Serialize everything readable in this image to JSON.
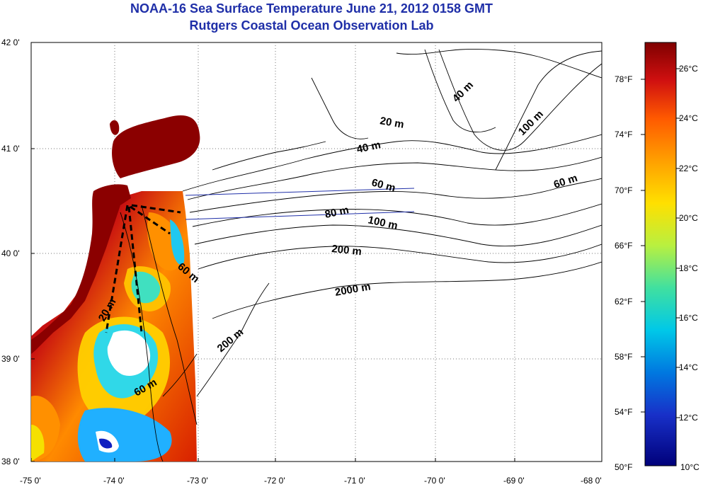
{
  "title": {
    "line1": "NOAA-16 Sea Surface Temperature June 21, 2012 0158 GMT",
    "line2": "Rutgers Coastal Ocean Observation Lab"
  },
  "axes": {
    "x_ticks": [
      "-75 0'",
      "-74 0'",
      "-73 0'",
      "-72 0'",
      "-71 0'",
      "-70 0'",
      "-69 0'",
      "-68 0'"
    ],
    "y_ticks": [
      "42 0'",
      "41 0'",
      "40 0'",
      "39 0'",
      "38 0'"
    ]
  },
  "contour_labels": [
    {
      "text": "40 m",
      "angle": -45
    },
    {
      "text": "100 m",
      "angle": -45
    },
    {
      "text": "20 m",
      "angle": 10
    },
    {
      "text": "40 m",
      "angle": -12
    },
    {
      "text": "60 m",
      "angle": 15
    },
    {
      "text": "60 m",
      "angle": -18
    },
    {
      "text": "80 m",
      "angle": -12
    },
    {
      "text": "100 m",
      "angle": 12
    },
    {
      "text": "200 m",
      "angle": 6
    },
    {
      "text": "60 m",
      "angle": 40
    },
    {
      "text": "2000 m",
      "angle": -10
    },
    {
      "text": "20 m",
      "angle": -60
    },
    {
      "text": "200 m",
      "angle": -40
    },
    {
      "text": "60 m",
      "angle": -30
    }
  ],
  "colorbar": {
    "fahrenheit": [
      "78°F",
      "74°F",
      "70°F",
      "66°F",
      "62°F",
      "58°F",
      "54°F",
      "50°F"
    ],
    "celsius": [
      "26°C",
      "24°C",
      "22°C",
      "20°C",
      "18°C",
      "16°C",
      "14°C",
      "12°C",
      "10°C"
    ],
    "colors": [
      "#800000",
      "#d01010",
      "#ff5a00",
      "#ffa000",
      "#ffe000",
      "#b8f040",
      "#40e0a0",
      "#00c8e8",
      "#0078e0",
      "#1830c8",
      "#00007a"
    ]
  }
}
